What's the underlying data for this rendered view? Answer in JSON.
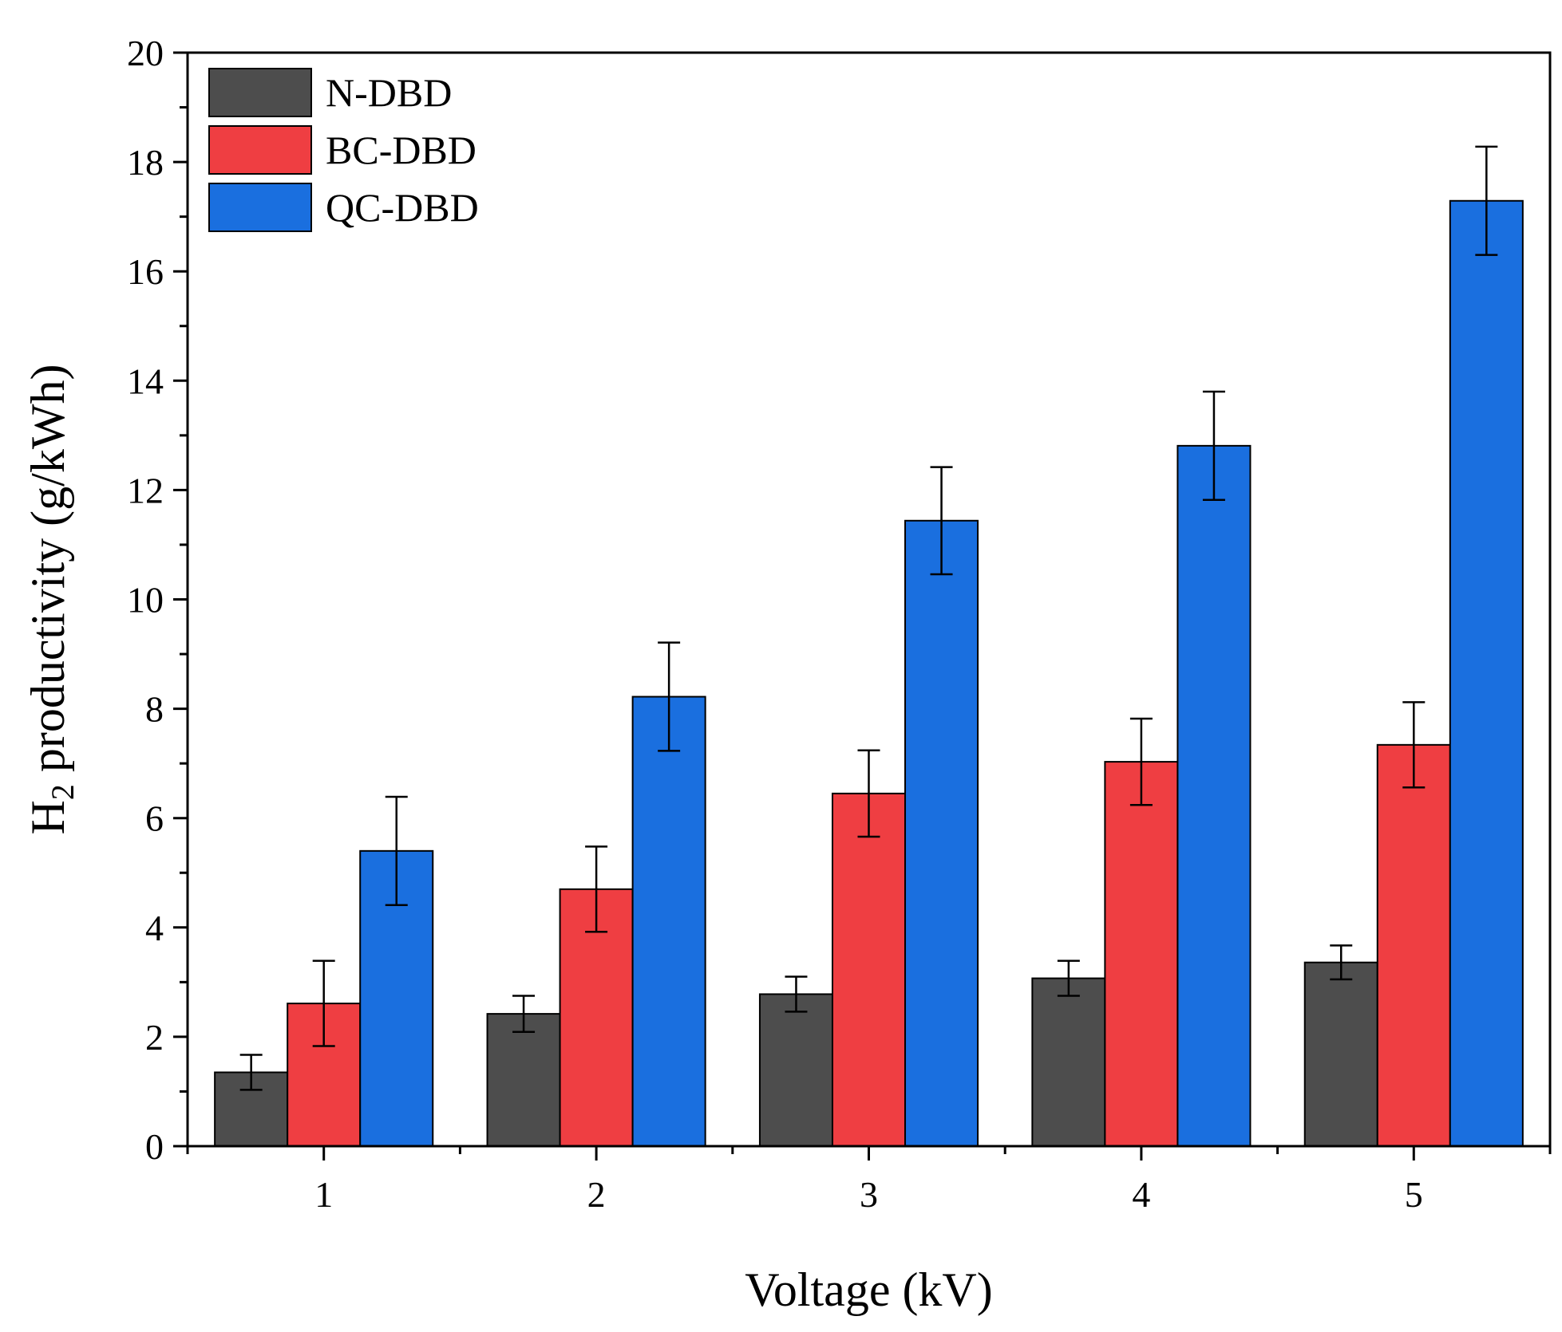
{
  "chart_data": {
    "type": "bar",
    "xlabel": "Voltage (kV)",
    "ylabel_main": "H",
    "ylabel_sub": "2",
    "ylabel_rest": " productivity (g/kWh)",
    "categories": [
      "1",
      "2",
      "3",
      "4",
      "5"
    ],
    "ylim": [
      0,
      20
    ],
    "yticks": [
      0,
      2,
      4,
      6,
      8,
      10,
      12,
      14,
      16,
      18,
      20
    ],
    "grid": false,
    "legend_position": "top-left",
    "series": [
      {
        "name": "N-DBD",
        "color": "#4d4d4d",
        "values": [
          1.35,
          2.42,
          2.78,
          3.07,
          3.36
        ],
        "errors": [
          0.32,
          0.33,
          0.32,
          0.32,
          0.31
        ]
      },
      {
        "name": "BC-DBD",
        "color": "#ef3e42",
        "values": [
          2.61,
          4.7,
          6.45,
          7.03,
          7.34
        ],
        "errors": [
          0.78,
          0.78,
          0.79,
          0.79,
          0.78
        ]
      },
      {
        "name": "QC-DBD",
        "color": "#1a6fdf",
        "values": [
          5.4,
          8.22,
          11.44,
          12.81,
          17.29
        ],
        "errors": [
          0.99,
          0.99,
          0.98,
          0.99,
          0.99
        ]
      }
    ]
  }
}
